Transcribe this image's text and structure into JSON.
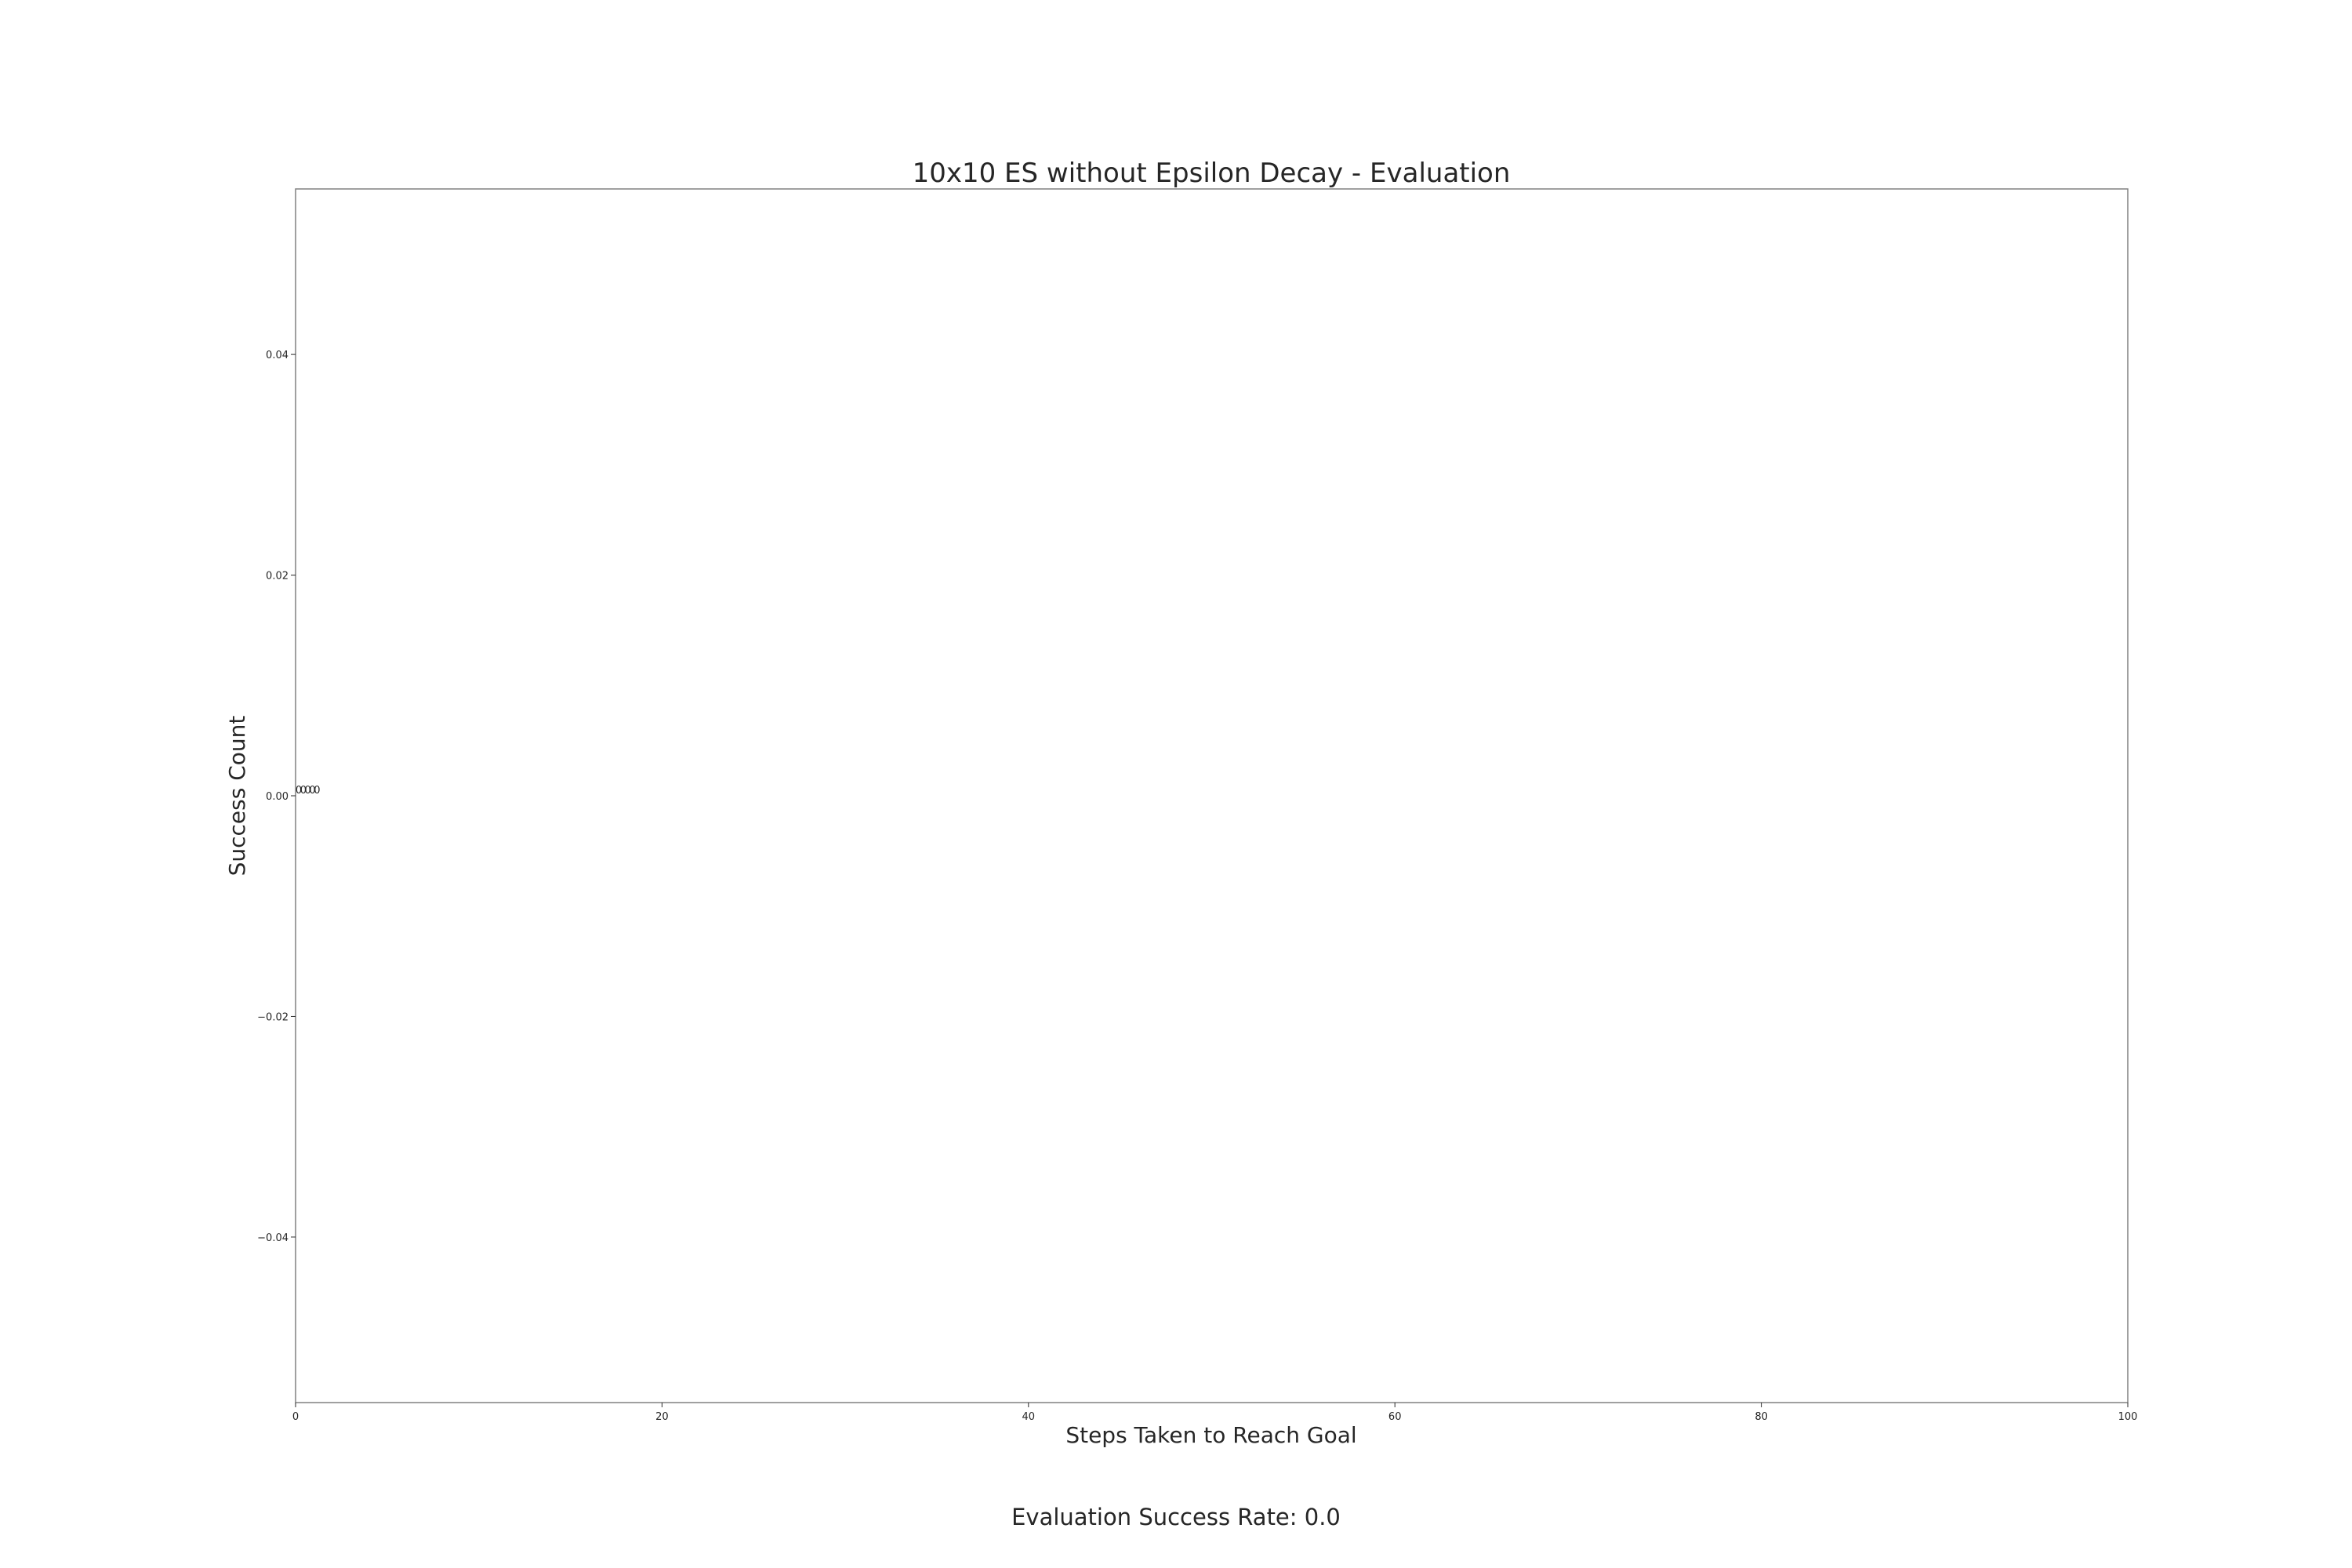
{
  "chart_data": {
    "type": "bar",
    "title": "10x10 ES without Epsilon Decay - Evaluation",
    "xlabel": "Steps Taken to Reach Goal",
    "ylabel": "Success Count",
    "xlim": [
      0,
      100
    ],
    "ylim": [
      -0.055,
      0.055
    ],
    "xticks": [
      "0",
      "20",
      "40",
      "60",
      "80",
      "100"
    ],
    "yticks": [
      "−0.04",
      "−0.02",
      "0.00",
      "0.02",
      "0.04"
    ],
    "bars": [
      {
        "x": 0,
        "value": 0,
        "label": "0"
      },
      {
        "x": 0.25,
        "value": 0,
        "label": "0"
      },
      {
        "x": 0.5,
        "value": 0,
        "label": "0"
      },
      {
        "x": 0.75,
        "value": 0,
        "label": "0"
      },
      {
        "x": 1,
        "value": 0,
        "label": "0"
      }
    ],
    "grid": false,
    "colors": {
      "frame": "#808080",
      "text": "#262626"
    }
  },
  "footer": {
    "text": "Evaluation Success Rate: 0.0"
  }
}
